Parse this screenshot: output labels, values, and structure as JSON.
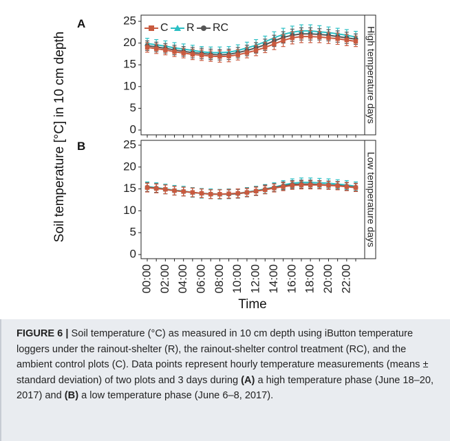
{
  "chart_data": [
    {
      "type": "line",
      "panel_label": "A",
      "strip_label": "High temperature days",
      "ylabel": "Soil temperature [°C] in 10 cm depth",
      "xlabel": "Time",
      "ylim": [
        0,
        25
      ],
      "yticks": [
        0,
        5,
        10,
        15,
        20,
        25
      ],
      "x": [
        "00:00",
        "01:00",
        "02:00",
        "03:00",
        "04:00",
        "05:00",
        "06:00",
        "07:00",
        "08:00",
        "09:00",
        "10:00",
        "11:00",
        "12:00",
        "13:00",
        "14:00",
        "15:00",
        "16:00",
        "17:00",
        "18:00",
        "19:00",
        "20:00",
        "21:00",
        "22:00",
        "23:00"
      ],
      "legend_position": "top-left",
      "grid": false,
      "series": [
        {
          "name": "C",
          "color": "#c85a3f",
          "marker": "square",
          "values": [
            19.0,
            18.7,
            18.4,
            18.0,
            17.7,
            17.4,
            17.2,
            17.0,
            16.9,
            17.0,
            17.3,
            17.8,
            18.3,
            19.0,
            19.8,
            20.6,
            21.2,
            21.5,
            21.5,
            21.4,
            21.2,
            21.0,
            20.7,
            20.4
          ],
          "sd": [
            1.1,
            1.1,
            1.1,
            1.1,
            1.1,
            1.2,
            1.2,
            1.2,
            1.3,
            1.3,
            1.2,
            1.2,
            1.2,
            1.2,
            1.3,
            1.4,
            1.4,
            1.4,
            1.4,
            1.3,
            1.3,
            1.3,
            1.3,
            1.2
          ]
        },
        {
          "name": "R",
          "color": "#2bbfc4",
          "marker": "triangle",
          "values": [
            19.9,
            19.6,
            19.3,
            18.9,
            18.6,
            18.3,
            18.0,
            17.8,
            17.8,
            17.9,
            18.3,
            18.9,
            19.5,
            20.3,
            21.2,
            22.0,
            22.5,
            22.8,
            22.8,
            22.6,
            22.4,
            22.1,
            21.8,
            21.4
          ],
          "sd": [
            1.2,
            1.2,
            1.2,
            1.2,
            1.2,
            1.2,
            1.2,
            1.3,
            1.3,
            1.3,
            1.3,
            1.3,
            1.3,
            1.3,
            1.4,
            1.4,
            1.4,
            1.4,
            1.4,
            1.4,
            1.3,
            1.3,
            1.3,
            1.3
          ]
        },
        {
          "name": "RC",
          "color": "#555555",
          "marker": "circle",
          "values": [
            19.4,
            19.1,
            18.8,
            18.4,
            18.1,
            17.8,
            17.6,
            17.4,
            17.3,
            17.4,
            17.8,
            18.3,
            18.9,
            19.6,
            20.5,
            21.3,
            21.8,
            22.1,
            22.1,
            22.0,
            21.8,
            21.5,
            21.2,
            20.9
          ],
          "sd": [
            1.1,
            1.1,
            1.1,
            1.1,
            1.1,
            1.2,
            1.2,
            1.2,
            1.2,
            1.2,
            1.2,
            1.2,
            1.2,
            1.3,
            1.3,
            1.3,
            1.4,
            1.4,
            1.4,
            1.3,
            1.3,
            1.3,
            1.3,
            1.2
          ]
        }
      ]
    },
    {
      "type": "line",
      "panel_label": "B",
      "strip_label": "Low temperature days",
      "ylabel": "Soil temperature [°C] in 10 cm depth",
      "xlabel": "Time",
      "ylim": [
        0,
        25
      ],
      "yticks": [
        0,
        5,
        10,
        15,
        20,
        25
      ],
      "x": [
        "00:00",
        "01:00",
        "02:00",
        "03:00",
        "04:00",
        "05:00",
        "06:00",
        "07:00",
        "08:00",
        "09:00",
        "10:00",
        "11:00",
        "12:00",
        "13:00",
        "14:00",
        "15:00",
        "16:00",
        "17:00",
        "18:00",
        "19:00",
        "20:00",
        "21:00",
        "22:00",
        "23:00"
      ],
      "xticks_shown": [
        "00:00",
        "02:00",
        "04:00",
        "06:00",
        "08:00",
        "10:00",
        "12:00",
        "14:00",
        "16:00",
        "18:00",
        "20:00",
        "22:00"
      ],
      "grid": false,
      "series": [
        {
          "name": "C",
          "color": "#c85a3f",
          "marker": "square",
          "values": [
            15.3,
            15.1,
            14.9,
            14.6,
            14.4,
            14.2,
            14.0,
            13.8,
            13.8,
            13.9,
            14.0,
            14.2,
            14.5,
            14.8,
            15.2,
            15.5,
            15.8,
            15.9,
            15.9,
            15.9,
            15.8,
            15.7,
            15.5,
            15.3
          ],
          "sd": [
            1.0,
            1.0,
            1.0,
            1.0,
            1.0,
            1.0,
            1.0,
            1.0,
            1.0,
            1.0,
            1.0,
            0.9,
            0.9,
            0.9,
            0.9,
            0.9,
            0.9,
            0.9,
            0.9,
            0.9,
            0.9,
            0.9,
            0.9,
            0.9
          ]
        },
        {
          "name": "R",
          "color": "#2bbfc4",
          "marker": "triangle",
          "values": [
            15.5,
            15.3,
            15.0,
            14.7,
            14.5,
            14.2,
            14.0,
            13.9,
            13.8,
            13.9,
            14.0,
            14.3,
            14.6,
            15.0,
            15.4,
            15.9,
            16.3,
            16.5,
            16.5,
            16.4,
            16.3,
            16.1,
            15.9,
            15.6
          ],
          "sd": [
            1.1,
            1.1,
            1.1,
            1.1,
            1.1,
            1.1,
            1.1,
            1.1,
            1.1,
            1.1,
            1.0,
            1.0,
            1.0,
            1.0,
            1.0,
            1.0,
            1.0,
            1.0,
            1.0,
            1.0,
            1.0,
            1.0,
            1.0,
            1.0
          ]
        },
        {
          "name": "RC",
          "color": "#555555",
          "marker": "circle",
          "values": [
            15.4,
            15.2,
            14.9,
            14.6,
            14.4,
            14.2,
            14.0,
            13.8,
            13.8,
            13.8,
            13.9,
            14.2,
            14.5,
            14.9,
            15.3,
            15.7,
            16.0,
            16.1,
            16.1,
            16.0,
            15.9,
            15.8,
            15.6,
            15.4
          ],
          "sd": [
            1.0,
            1.0,
            1.0,
            1.0,
            1.0,
            1.0,
            1.0,
            1.0,
            1.0,
            1.0,
            1.0,
            1.0,
            1.0,
            1.0,
            0.9,
            0.9,
            0.9,
            0.9,
            0.9,
            0.9,
            0.9,
            0.9,
            0.9,
            0.9
          ]
        }
      ]
    }
  ],
  "caption": {
    "label": "FIGURE 6 |",
    "text_1": " Soil temperature (°C) as measured in 10 cm depth using iButton temperature loggers under the rainout-shelter (R), the rainout-shelter control treatment (RC), and the ambient control plots (C). Data points represent hourly temperature measurements (means ± standard deviation) of two plots and 3 days during ",
    "ref_a": "(A)",
    "text_2": " a high temperature phase (June 18–20, 2017) and ",
    "ref_b": "(B)",
    "text_3": " a low temperature phase (June 6–8, 2017)."
  }
}
